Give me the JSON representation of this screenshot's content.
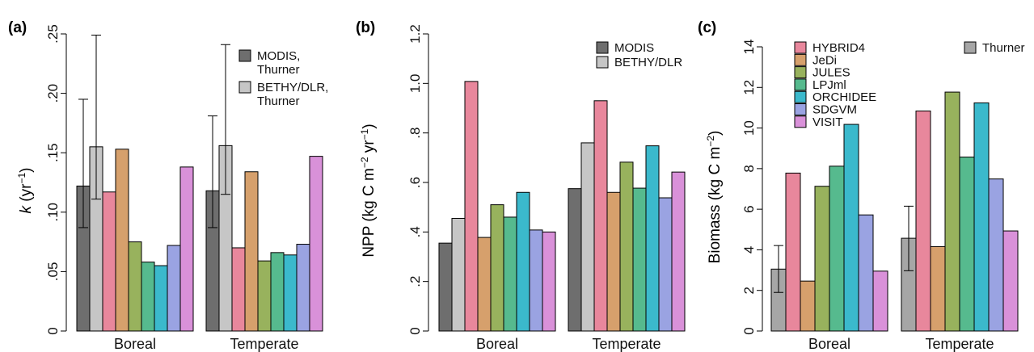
{
  "colors": {
    "MODIS": "#6e6e6e",
    "BETHY": "#c6c6c6",
    "HYBRID4": "#e8879c",
    "JeDi": "#d6a06c",
    "JULES": "#98b25d",
    "LPJml": "#56ba8e",
    "ORCHIDEE": "#3bb9cc",
    "SDGVM": "#9aa3e2",
    "VISIT": "#d991d9",
    "Thurner": "#a6a6a6"
  },
  "chart_data": [
    {
      "panel": "(a)",
      "type": "bar",
      "ylabel_main": "k",
      "ylabel_rest": " (yr",
      "ylabel_sup": "−1",
      "ylabel_end": ")",
      "ylim": [
        0,
        0.25
      ],
      "yticks": [
        {
          "value": 0,
          "label": "0"
        },
        {
          "value": 0.05,
          "label": ".05"
        },
        {
          "value": 0.1,
          "label": ".10"
        },
        {
          "value": 0.15,
          "label": ".15"
        },
        {
          "value": 0.2,
          "label": ".20"
        },
        {
          "value": 0.25,
          "label": ".25"
        }
      ],
      "categories": [
        "Boreal",
        "Temperate"
      ],
      "series": [
        {
          "key": "MODIS",
          "values": [
            0.122,
            0.118
          ],
          "err_low": [
            0.087,
            0.087
          ],
          "err_high": [
            0.195,
            0.181
          ]
        },
        {
          "key": "BETHY",
          "values": [
            0.155,
            0.156
          ],
          "err_low": [
            0.111,
            0.115
          ],
          "err_high": [
            0.249,
            0.241
          ]
        },
        {
          "key": "HYBRID4",
          "values": [
            0.117,
            0.07
          ]
        },
        {
          "key": "JeDi",
          "values": [
            0.153,
            0.134
          ]
        },
        {
          "key": "JULES",
          "values": [
            0.075,
            0.059
          ]
        },
        {
          "key": "LPJml",
          "values": [
            0.058,
            0.066
          ]
        },
        {
          "key": "ORCHIDEE",
          "values": [
            0.055,
            0.064
          ]
        },
        {
          "key": "SDGVM",
          "values": [
            0.072,
            0.073
          ]
        },
        {
          "key": "VISIT",
          "values": [
            0.138,
            0.147
          ]
        }
      ],
      "legend": [
        {
          "key": "MODIS",
          "lines": [
            "MODIS,",
            "Thurner"
          ]
        },
        {
          "key": "BETHY",
          "lines": [
            "BETHY/DLR,",
            "Thurner"
          ]
        }
      ]
    },
    {
      "panel": "(b)",
      "type": "bar",
      "ylabel_main": "NPP",
      "ylabel_rest": " (kg C m",
      "ylabel_sup": "−2",
      "ylabel_mid": " yr",
      "ylabel_sup2": "−1",
      "ylabel_end": ")",
      "ylim": [
        0,
        1.2
      ],
      "yticks": [
        {
          "value": 0,
          "label": "0"
        },
        {
          "value": 0.2,
          "label": ".2"
        },
        {
          "value": 0.4,
          "label": ".4"
        },
        {
          "value": 0.6,
          "label": ".6"
        },
        {
          "value": 0.8,
          "label": ".8"
        },
        {
          "value": 1.0,
          "label": "1.0"
        },
        {
          "value": 1.2,
          "label": "1.2"
        }
      ],
      "categories": [
        "Boreal",
        "Temperate"
      ],
      "series": [
        {
          "key": "MODIS",
          "values": [
            0.355,
            0.575
          ]
        },
        {
          "key": "BETHY",
          "values": [
            0.455,
            0.76
          ]
        },
        {
          "key": "HYBRID4",
          "values": [
            1.008,
            0.93
          ]
        },
        {
          "key": "JeDi",
          "values": [
            0.378,
            0.56
          ]
        },
        {
          "key": "JULES",
          "values": [
            0.51,
            0.682
          ]
        },
        {
          "key": "LPJml",
          "values": [
            0.46,
            0.577
          ]
        },
        {
          "key": "ORCHIDEE",
          "values": [
            0.56,
            0.748
          ]
        },
        {
          "key": "SDGVM",
          "values": [
            0.408,
            0.538
          ]
        },
        {
          "key": "VISIT",
          "values": [
            0.4,
            0.642
          ]
        }
      ],
      "legend": [
        {
          "key": "MODIS",
          "lines": [
            "MODIS"
          ]
        },
        {
          "key": "BETHY",
          "lines": [
            "BETHY/DLR"
          ]
        }
      ]
    },
    {
      "panel": "(c)",
      "type": "bar",
      "ylabel_main": "Biomass",
      "ylabel_rest": " (kg C m",
      "ylabel_sup": "−2",
      "ylabel_end": ")",
      "ylim": [
        0,
        14
      ],
      "yticks": [
        {
          "value": 0,
          "label": "0"
        },
        {
          "value": 2,
          "label": "2"
        },
        {
          "value": 4,
          "label": "4"
        },
        {
          "value": 6,
          "label": "6"
        },
        {
          "value": 8,
          "label": "8"
        },
        {
          "value": 10,
          "label": "10"
        },
        {
          "value": 12,
          "label": "12"
        },
        {
          "value": 14,
          "label": "14"
        }
      ],
      "categories": [
        "Boreal",
        "Temperate"
      ],
      "series": [
        {
          "key": "Thurner",
          "values": [
            3.05,
            4.57
          ],
          "err_low": [
            1.9,
            2.97
          ],
          "err_high": [
            4.21,
            6.15
          ]
        },
        {
          "key": "HYBRID4",
          "values": [
            7.78,
            10.84
          ]
        },
        {
          "key": "JeDi",
          "values": [
            2.46,
            4.16
          ]
        },
        {
          "key": "JULES",
          "values": [
            7.13,
            11.77
          ]
        },
        {
          "key": "LPJml",
          "values": [
            8.12,
            8.57
          ]
        },
        {
          "key": "ORCHIDEE",
          "values": [
            10.18,
            11.24
          ]
        },
        {
          "key": "SDGVM",
          "values": [
            5.72,
            7.49
          ]
        },
        {
          "key": "VISIT",
          "values": [
            2.95,
            4.93
          ]
        }
      ],
      "legend": [
        {
          "key": "HYBRID4",
          "lines": [
            "HYBRID4"
          ]
        },
        {
          "key": "JeDi",
          "lines": [
            "JeDi"
          ]
        },
        {
          "key": "JULES",
          "lines": [
            "JULES"
          ]
        },
        {
          "key": "LPJml",
          "lines": [
            "LPJml"
          ]
        },
        {
          "key": "ORCHIDEE",
          "lines": [
            "ORCHIDEE"
          ]
        },
        {
          "key": "SDGVM",
          "lines": [
            "SDGVM"
          ]
        },
        {
          "key": "VISIT",
          "lines": [
            "VISIT"
          ]
        }
      ],
      "legend2": [
        {
          "key": "Thurner",
          "lines": [
            "Thurner"
          ]
        }
      ]
    }
  ]
}
